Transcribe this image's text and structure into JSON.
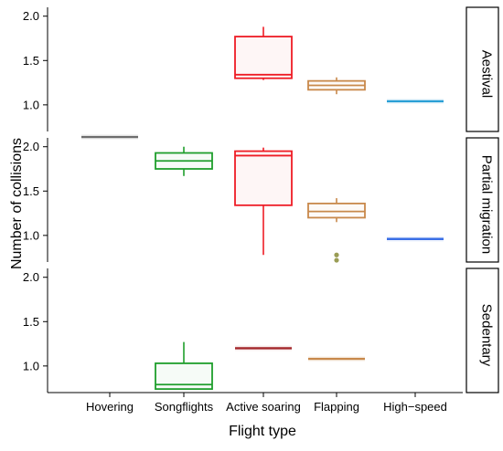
{
  "chart_data": {
    "type": "boxplot",
    "xlabel": "Flight type",
    "ylabel": "Number of collisions",
    "categories": [
      "Hovering",
      "Songflights",
      "Active soaring",
      "Flapping",
      "High−speed"
    ],
    "category_colors": [
      "#6e6e6e",
      "#1f9e2c",
      "#ee1c25",
      "#c8894b",
      "#2a9fd6"
    ],
    "ylim": [
      0.7,
      2.1
    ],
    "yticks": [
      "1.0",
      "1.5",
      "2.0"
    ],
    "ytick_values": [
      1.0,
      1.5,
      2.0
    ],
    "grid": false,
    "legend": "none",
    "panels": [
      {
        "strip": "Aestival",
        "boxes": [
          {
            "category": "Active soaring",
            "min": 1.28,
            "q1": 1.3,
            "median": 1.34,
            "q3": 1.77,
            "max": 1.88,
            "outliers": []
          },
          {
            "category": "Flapping",
            "min": 1.12,
            "q1": 1.17,
            "median": 1.22,
            "q3": 1.27,
            "max": 1.31,
            "outliers": []
          },
          {
            "category": "High−speed",
            "min": 1.04,
            "q1": 1.04,
            "median": 1.04,
            "q3": 1.04,
            "max": 1.04,
            "outliers": [],
            "color": "#2a9fd6"
          }
        ]
      },
      {
        "strip": "Partial migration",
        "boxes": [
          {
            "category": "Hovering",
            "min": 2.11,
            "q1": 2.11,
            "median": 2.11,
            "q3": 2.11,
            "max": 2.11,
            "outliers": []
          },
          {
            "category": "Songflights",
            "min": 1.67,
            "q1": 1.75,
            "median": 1.84,
            "q3": 1.93,
            "max": 2.0,
            "outliers": []
          },
          {
            "category": "Active soaring",
            "min": 0.78,
            "q1": 1.34,
            "median": 1.9,
            "q3": 1.95,
            "max": 1.99,
            "outliers": []
          },
          {
            "category": "Flapping",
            "min": 1.15,
            "q1": 1.2,
            "median": 1.27,
            "q3": 1.36,
            "max": 1.42,
            "outliers": [
              0.78,
              0.72
            ]
          },
          {
            "category": "High−speed",
            "min": 0.96,
            "q1": 0.96,
            "median": 0.96,
            "q3": 0.96,
            "max": 0.96,
            "outliers": [],
            "color": "#3a6ee6"
          }
        ]
      },
      {
        "strip": "Sedentary",
        "boxes": [
          {
            "category": "Songflights",
            "min": 0.74,
            "q1": 0.74,
            "median": 0.79,
            "q3": 1.03,
            "max": 1.27,
            "outliers": []
          },
          {
            "category": "Active soaring",
            "min": 1.2,
            "q1": 1.2,
            "median": 1.2,
            "q3": 1.2,
            "max": 1.2,
            "outliers": [],
            "color": "#a3262a"
          },
          {
            "category": "Flapping",
            "min": 1.08,
            "q1": 1.08,
            "median": 1.08,
            "q3": 1.08,
            "max": 1.08,
            "outliers": []
          }
        ]
      }
    ]
  }
}
